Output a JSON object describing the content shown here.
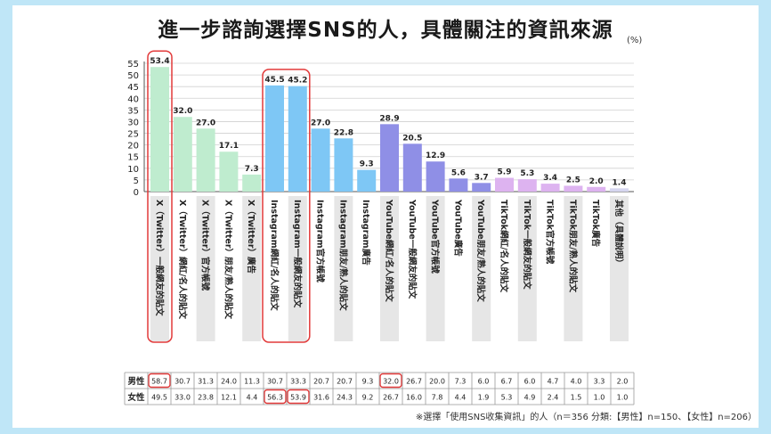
{
  "title": "進一步諮詢選擇SNS的人，具體關注的資訊來源",
  "unit": "(%)",
  "note": "※選擇「使用SNS收集資訊」的人（n＝356 分類:【男性】n=150、【女性】n=206）",
  "colors": {
    "x": "#bfeccf",
    "instagram": "#7ec7f5",
    "youtube": "#8f8fe6",
    "tiktok": "#ddb3f0",
    "other": "#d6d6f0",
    "highlight": "#e23a3a"
  },
  "chart_data": {
    "type": "bar",
    "ylim": [
      0,
      55
    ],
    "yticks": [
      0,
      5,
      10,
      15,
      20,
      25,
      30,
      35,
      40,
      45,
      50,
      55
    ],
    "categories": [
      "X（Twitter）一般網友的貼文",
      "X（Twitter）網紅/名人的貼文",
      "X（Twitter）官方帳號",
      "X（Twitter）朋友/熟人的貼文",
      "X（Twitter）廣告",
      "Instagram網紅/名人的貼文",
      "Instagram一般網友的貼文",
      "Instagram官方帳號",
      "Instagram朋友/熟人的貼文",
      "Instagram廣告",
      "YouTube網紅/名人的貼文",
      "YouTube一般網友的貼文",
      "YouTube官方帳號",
      "YouTube廣告",
      "YouTube朋友/熟人的貼文",
      "TikTok網紅/名人的貼文",
      "TikTok一般網友的貼文",
      "TikTok官方帳號",
      "TikTok朋友/熟人的貼文",
      "TikTok廣告",
      "其他（具體說明）"
    ],
    "groups": [
      "x",
      "x",
      "x",
      "x",
      "x",
      "instagram",
      "instagram",
      "instagram",
      "instagram",
      "instagram",
      "youtube",
      "youtube",
      "youtube",
      "youtube",
      "youtube",
      "tiktok",
      "tiktok",
      "tiktok",
      "tiktok",
      "tiktok",
      "other"
    ],
    "values": [
      53.4,
      32.0,
      27.0,
      17.1,
      7.3,
      45.5,
      45.2,
      27.0,
      22.8,
      9.3,
      28.9,
      20.5,
      12.9,
      5.6,
      3.7,
      5.9,
      5.3,
      3.4,
      2.5,
      2.0,
      1.4
    ],
    "value_labels": [
      "53.4",
      "32.0",
      "27.0",
      "17.1",
      "7.3",
      "45.5",
      "45.2",
      "27.0",
      "22.8",
      "9.3",
      "28.9",
      "20.5",
      "12.9",
      "5.6",
      "3.7",
      "5.9",
      "5.3",
      "3.4",
      "2.5",
      "2.0",
      "1.4"
    ],
    "highlight_groups": [
      [
        0,
        0
      ],
      [
        5,
        6
      ]
    ],
    "table": {
      "rows": [
        {
          "name": "男性",
          "values": [
            "58.7",
            "30.7",
            "31.3",
            "24.0",
            "11.3",
            "30.7",
            "33.3",
            "20.7",
            "20.7",
            "9.3",
            "32.0",
            "26.7",
            "20.0",
            "7.3",
            "6.0",
            "6.7",
            "6.0",
            "4.7",
            "4.0",
            "3.3",
            "2.0"
          ],
          "highlight": [
            0,
            10
          ]
        },
        {
          "name": "女性",
          "values": [
            "49.5",
            "33.0",
            "23.8",
            "12.1",
            "4.4",
            "56.3",
            "53.9",
            "31.6",
            "24.3",
            "9.2",
            "26.7",
            "16.0",
            "7.8",
            "4.4",
            "1.9",
            "5.3",
            "4.9",
            "2.4",
            "1.5",
            "1.0",
            "1.0"
          ],
          "highlight": [
            5,
            6
          ]
        }
      ]
    }
  }
}
